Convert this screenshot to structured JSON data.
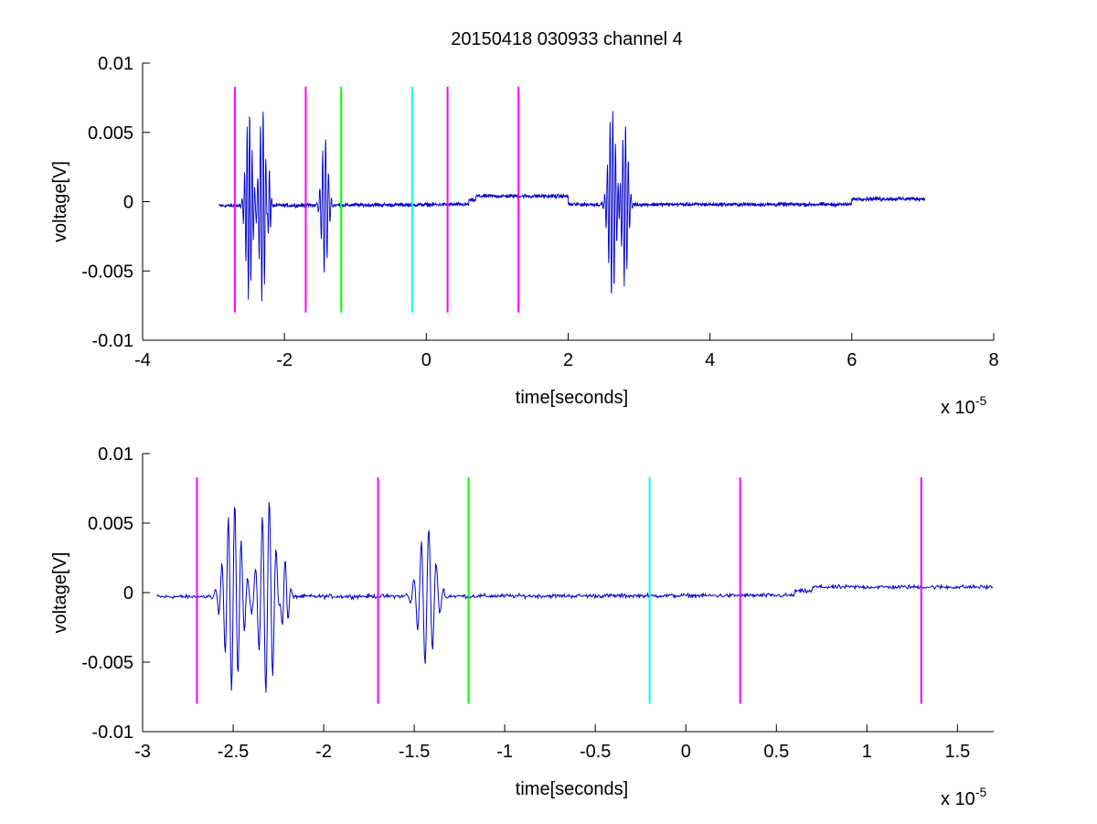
{
  "figure": {
    "title": "20150418 030933 channel 4"
  },
  "colors": {
    "signal": "#0000cc",
    "magenta": "#ff00ff",
    "green": "#00ff00",
    "cyan": "#00ffff"
  },
  "chart_data": [
    {
      "type": "line",
      "xlabel": "time[seconds]",
      "ylabel": "voltage[V]",
      "x_exponent_label": "x 10",
      "x_exponent": "-5",
      "xlim": [
        -4,
        8
      ],
      "ylim": [
        -0.01,
        0.01
      ],
      "x_ticks": [
        -4,
        -2,
        0,
        2,
        4,
        6,
        8
      ],
      "x_tick_labels": [
        "-4",
        "-2",
        "0",
        "2",
        "4",
        "6",
        "8"
      ],
      "y_ticks": [
        -0.01,
        -0.005,
        0,
        0.005,
        0.01
      ],
      "y_tick_labels": [
        "-0.01",
        "-0.005",
        "0",
        "0.005",
        "0.01"
      ],
      "signal_range": [
        -2.92,
        7.03
      ],
      "markers": [
        {
          "x": -2.7,
          "color": "magenta",
          "y_range": [
            -0.008,
            0.0083
          ]
        },
        {
          "x": -1.7,
          "color": "magenta",
          "y_range": [
            -0.008,
            0.0083
          ]
        },
        {
          "x": -1.2,
          "color": "green",
          "y_range": [
            -0.008,
            0.0083
          ]
        },
        {
          "x": -0.2,
          "color": "cyan",
          "y_range": [
            -0.008,
            0.0083
          ]
        },
        {
          "x": 0.3,
          "color": "magenta",
          "y_range": [
            -0.008,
            0.0083
          ]
        },
        {
          "x": 1.3,
          "color": "magenta",
          "y_range": [
            -0.008,
            0.0083
          ]
        }
      ]
    },
    {
      "type": "line",
      "xlabel": "time[seconds]",
      "ylabel": "voltage[V]",
      "x_exponent_label": "x 10",
      "x_exponent": "-5",
      "xlim": [
        -3,
        1.7
      ],
      "ylim": [
        -0.01,
        0.01
      ],
      "x_ticks": [
        -3,
        -2.5,
        -2,
        -1.5,
        -1,
        -0.5,
        0,
        0.5,
        1,
        1.5
      ],
      "x_tick_labels": [
        "-3",
        "-2.5",
        "-2",
        "-1.5",
        "-1",
        "-0.5",
        "0",
        "0.5",
        "1",
        "1.5"
      ],
      "y_ticks": [
        -0.01,
        -0.005,
        0,
        0.005,
        0.01
      ],
      "y_tick_labels": [
        "-0.01",
        "-0.005",
        "0",
        "0.005",
        "0.01"
      ],
      "signal_range": [
        -2.92,
        1.7
      ],
      "markers": [
        {
          "x": -2.7,
          "color": "magenta",
          "y_range": [
            -0.008,
            0.0083
          ]
        },
        {
          "x": -1.7,
          "color": "magenta",
          "y_range": [
            -0.008,
            0.0083
          ]
        },
        {
          "x": -1.2,
          "color": "green",
          "y_range": [
            -0.008,
            0.0083
          ]
        },
        {
          "x": -0.2,
          "color": "cyan",
          "y_range": [
            -0.008,
            0.0083
          ]
        },
        {
          "x": 0.3,
          "color": "magenta",
          "y_range": [
            -0.008,
            0.0083
          ]
        },
        {
          "x": 1.3,
          "color": "magenta",
          "y_range": [
            -0.008,
            0.0083
          ]
        }
      ]
    }
  ]
}
